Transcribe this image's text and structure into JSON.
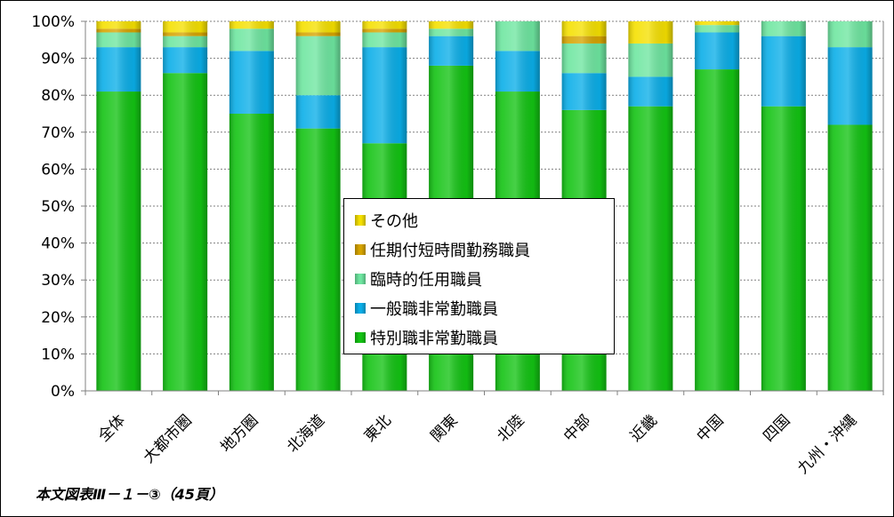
{
  "chart_data": {
    "type": "bar",
    "stacked": true,
    "normalized": true,
    "categories": [
      "全体",
      "大都市圏",
      "地方圏",
      "北海道",
      "東北",
      "関東",
      "北陸",
      "中部",
      "近畿",
      "中国",
      "四国",
      "九州・沖縄"
    ],
    "series": [
      {
        "name": "特別職非常勤職員",
        "color": "#13c313",
        "values": [
          81,
          86,
          75,
          71,
          67,
          88,
          81,
          76,
          77,
          87,
          77,
          72
        ]
      },
      {
        "name": "一般職非常勤職員",
        "color": "#0aaee8",
        "values": [
          12,
          7,
          17,
          9,
          26,
          8,
          11,
          10,
          8,
          10,
          19,
          21
        ]
      },
      {
        "name": "臨時的任用職員",
        "color": "#6ee6a0",
        "values": [
          4,
          3,
          6,
          16,
          4,
          2,
          8,
          8,
          9,
          2,
          4,
          7
        ]
      },
      {
        "name": "任期付短時間勤務職員",
        "color": "#d6a400",
        "values": [
          1,
          1,
          0,
          1,
          1,
          0,
          0,
          2,
          0,
          0,
          0,
          0
        ]
      },
      {
        "name": "その他",
        "color": "#f5e000",
        "values": [
          2,
          3,
          2,
          3,
          2,
          2,
          0,
          4,
          6,
          1,
          0,
          0
        ]
      }
    ],
    "y_ticks": [
      "0%",
      "10%",
      "20%",
      "30%",
      "40%",
      "50%",
      "60%",
      "70%",
      "80%",
      "90%",
      "100%"
    ],
    "ylim": [
      0,
      100
    ],
    "grid": true,
    "legend_position": "center",
    "legend_order": [
      "その他",
      "任期付短時間勤務職員",
      "臨時的任用職員",
      "一般職非常勤職員",
      "特別職非常勤職員"
    ]
  },
  "footnote": "本文図表Ⅲ－１－③（45頁）"
}
